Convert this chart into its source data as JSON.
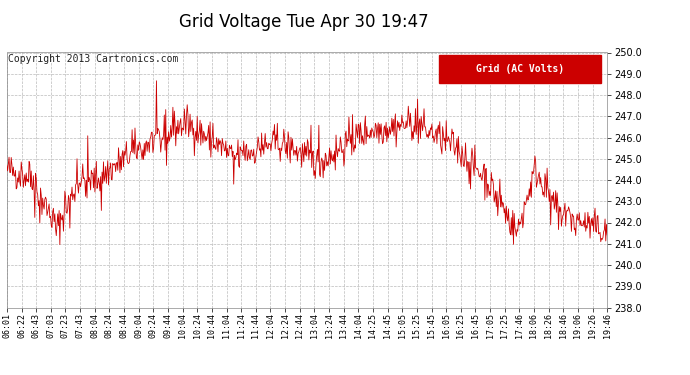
{
  "title": "Grid Voltage Tue Apr 30 19:47",
  "copyright": "Copyright 2013 Cartronics.com",
  "legend_label": "Grid (AC Volts)",
  "line_color": "#cc0000",
  "background_color": "#ffffff",
  "grid_color": "#bbbbbb",
  "ylim": [
    238.0,
    250.0
  ],
  "yticks": [
    238.0,
    239.0,
    240.0,
    241.0,
    242.0,
    243.0,
    244.0,
    245.0,
    246.0,
    247.0,
    248.0,
    249.0,
    250.0
  ],
  "xtick_labels": [
    "06:01",
    "06:22",
    "06:43",
    "07:03",
    "07:23",
    "07:43",
    "08:04",
    "08:24",
    "08:44",
    "09:04",
    "09:24",
    "09:44",
    "10:04",
    "10:24",
    "10:44",
    "11:04",
    "11:24",
    "11:44",
    "12:04",
    "12:24",
    "12:44",
    "13:04",
    "13:24",
    "13:44",
    "14:04",
    "14:25",
    "14:45",
    "15:05",
    "15:25",
    "15:45",
    "16:05",
    "16:25",
    "16:45",
    "17:05",
    "17:25",
    "17:46",
    "18:06",
    "18:26",
    "18:46",
    "19:06",
    "19:26",
    "19:46"
  ],
  "seed": 42,
  "title_fontsize": 12,
  "copyright_fontsize": 7,
  "ytick_fontsize": 7,
  "xtick_fontsize": 6
}
